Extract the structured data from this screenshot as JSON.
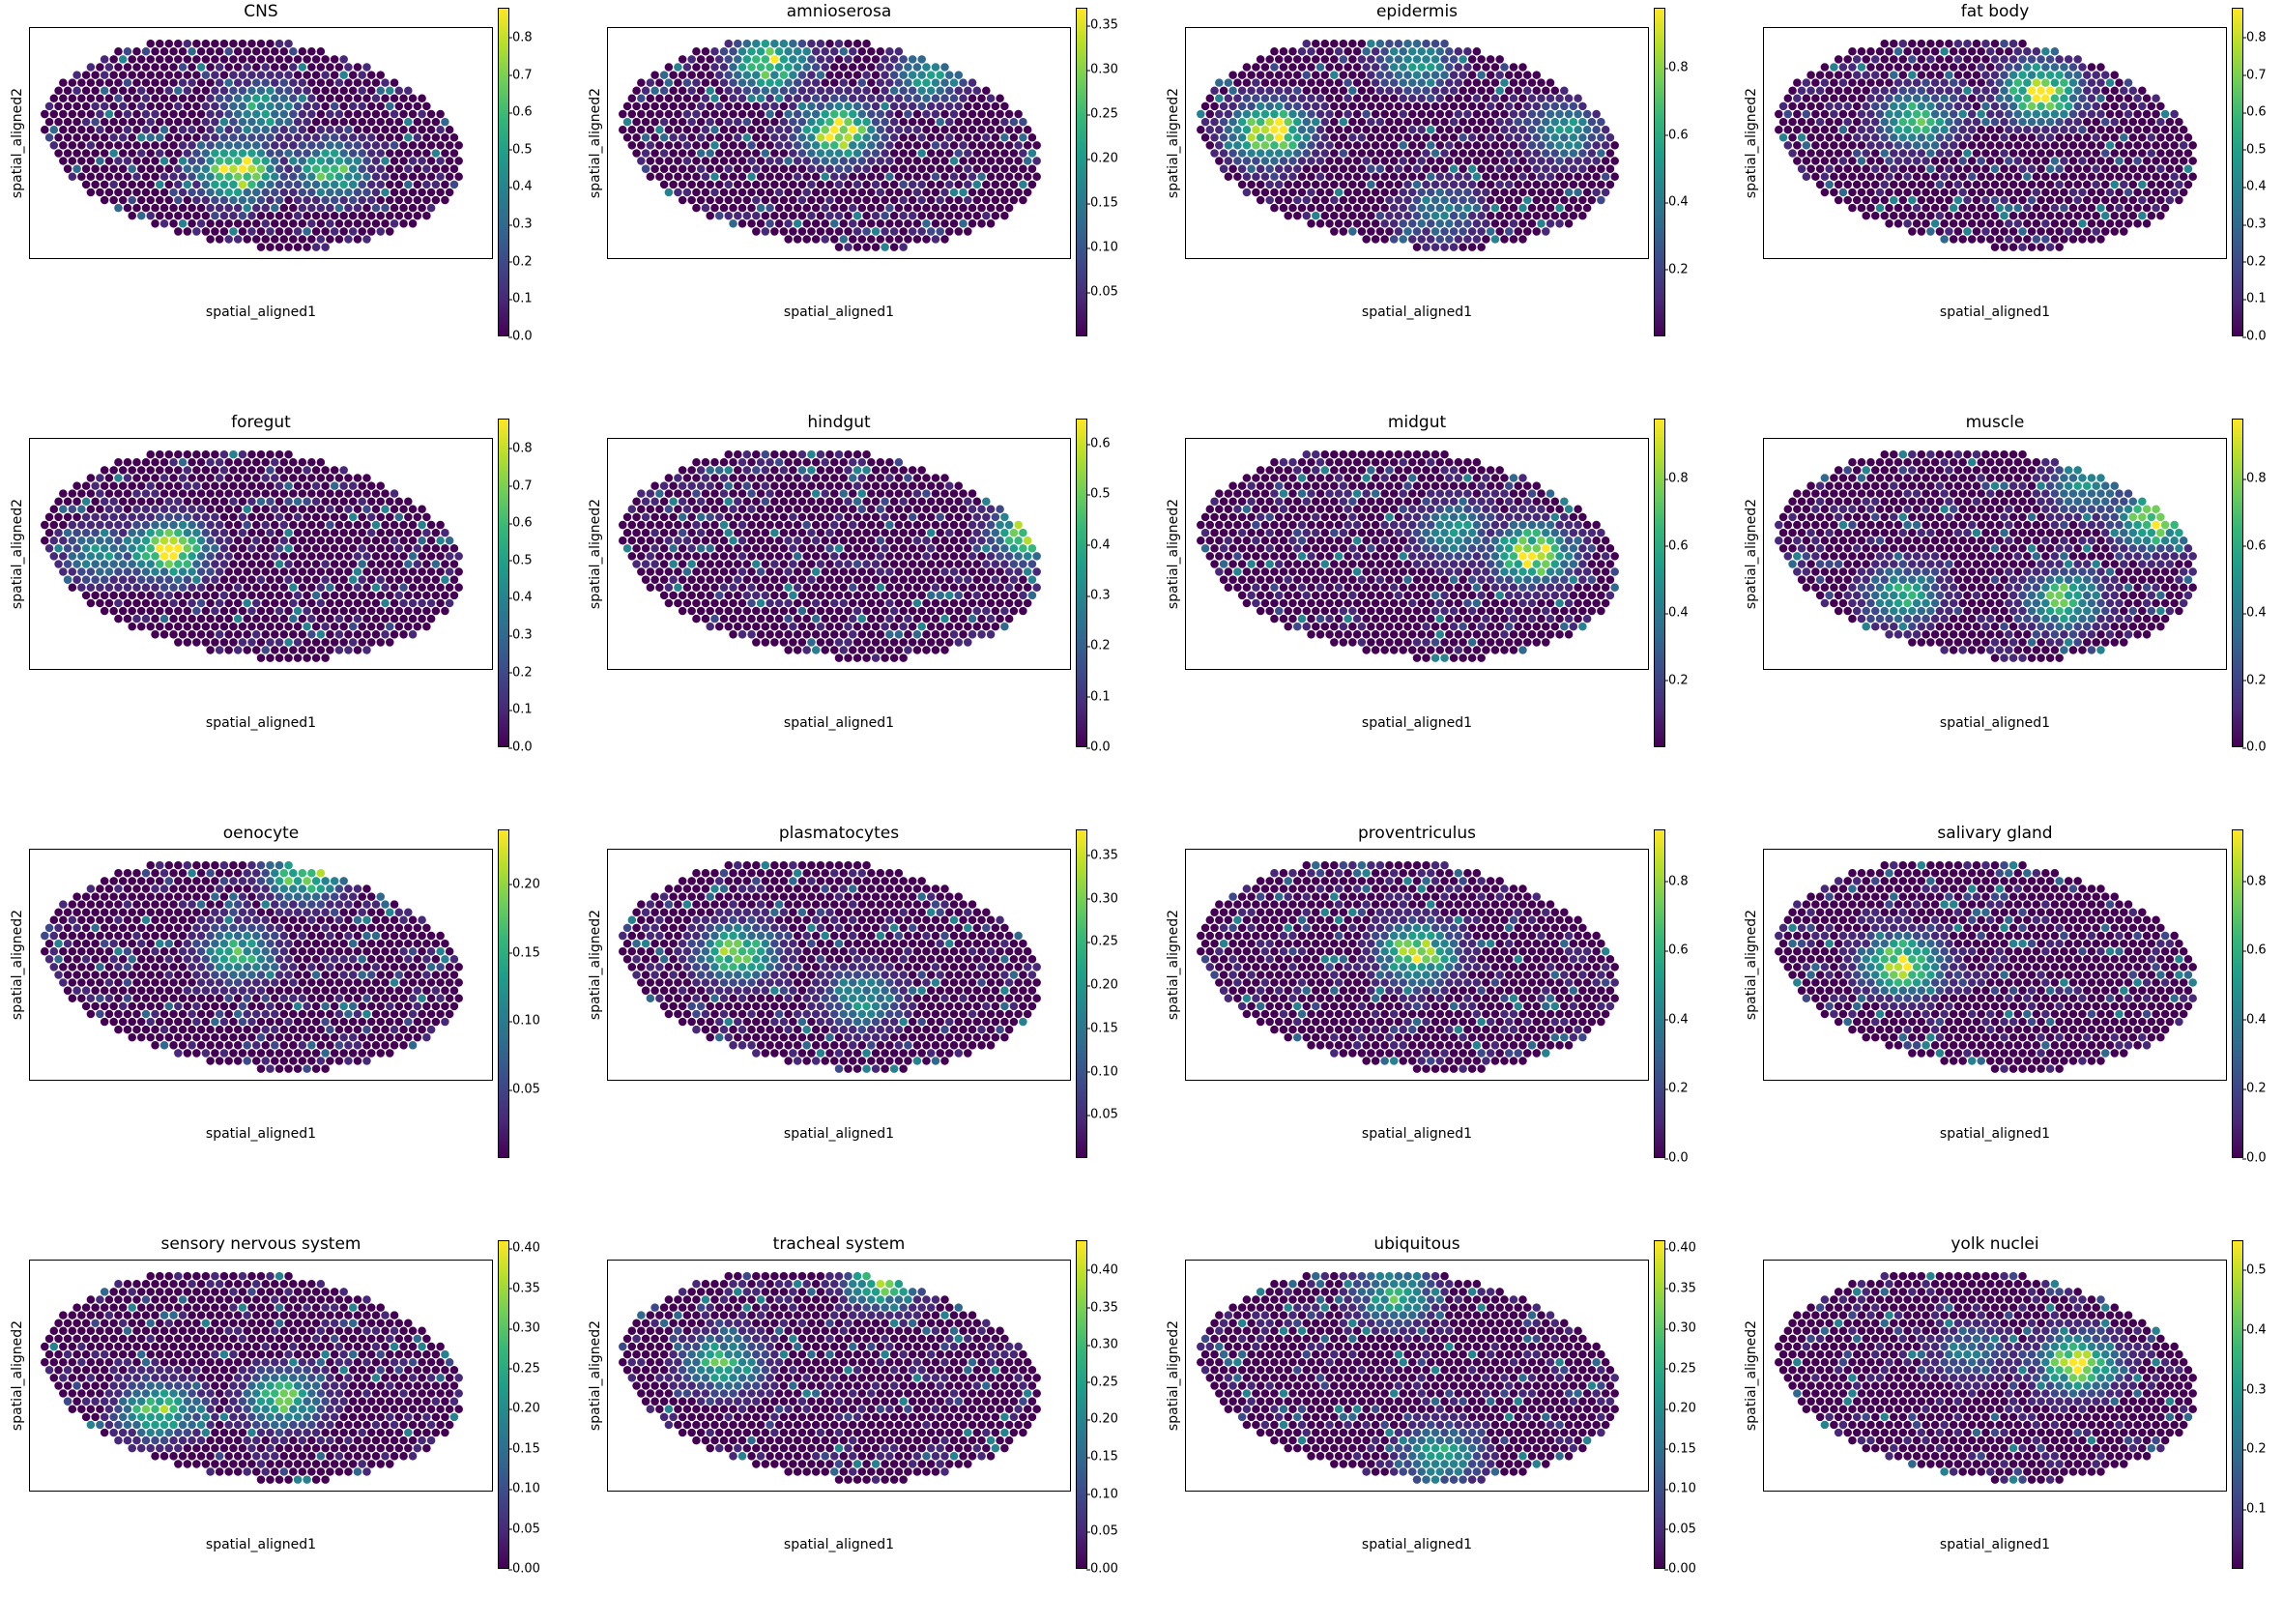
{
  "colormap": "viridis",
  "colors": [
    "#440154",
    "#482878",
    "#3e4989",
    "#31688e",
    "#26828e",
    "#1f9e89",
    "#35b779",
    "#6ece58",
    "#b5de2b",
    "#fde725"
  ],
  "chart_data": [
    {
      "type": "scatter",
      "title": "CNS",
      "xlabel": "spatial_aligned1",
      "ylabel": "spatial_aligned2",
      "colorbar": {
        "ticks": [
          "0.0",
          "0.1",
          "0.2",
          "0.3",
          "0.4",
          "0.5",
          "0.6",
          "0.7",
          "0.8"
        ],
        "min": 0,
        "max": 0.88
      },
      "hotspots": [
        {
          "x": 0.45,
          "y": 0.62,
          "v": 0.85
        },
        {
          "x": 0.65,
          "y": 0.62,
          "v": 0.6
        },
        {
          "x": 0.5,
          "y": 0.35,
          "v": 0.5
        }
      ]
    },
    {
      "type": "scatter",
      "title": "amnioserosa",
      "xlabel": "spatial_aligned1",
      "ylabel": "spatial_aligned2",
      "colorbar": {
        "ticks": [
          "0.05",
          "0.10",
          "0.15",
          "0.20",
          "0.25",
          "0.30",
          "0.35"
        ],
        "min": 0,
        "max": 0.37
      },
      "hotspots": [
        {
          "x": 0.5,
          "y": 0.45,
          "v": 0.35
        },
        {
          "x": 0.35,
          "y": 0.15,
          "v": 0.3
        },
        {
          "x": 0.7,
          "y": 0.2,
          "v": 0.2
        }
      ]
    },
    {
      "type": "scatter",
      "title": "epidermis",
      "xlabel": "spatial_aligned1",
      "ylabel": "spatial_aligned2",
      "colorbar": {
        "ticks": [
          "0.2",
          "0.4",
          "0.6",
          "0.8"
        ],
        "min": 0,
        "max": 0.98
      },
      "hotspots": [
        {
          "x": 0.18,
          "y": 0.45,
          "v": 0.95
        },
        {
          "x": 0.5,
          "y": 0.15,
          "v": 0.5
        },
        {
          "x": 0.82,
          "y": 0.45,
          "v": 0.5
        },
        {
          "x": 0.55,
          "y": 0.8,
          "v": 0.4
        }
      ]
    },
    {
      "type": "scatter",
      "title": "fat body",
      "xlabel": "spatial_aligned1",
      "ylabel": "spatial_aligned2",
      "colorbar": {
        "ticks": [
          "0.0",
          "0.1",
          "0.2",
          "0.3",
          "0.4",
          "0.5",
          "0.6",
          "0.7",
          "0.8"
        ],
        "min": 0,
        "max": 0.88
      },
      "hotspots": [
        {
          "x": 0.6,
          "y": 0.28,
          "v": 0.85
        },
        {
          "x": 0.33,
          "y": 0.4,
          "v": 0.6
        }
      ]
    },
    {
      "type": "scatter",
      "title": "foregut",
      "xlabel": "spatial_aligned1",
      "ylabel": "spatial_aligned2",
      "colorbar": {
        "ticks": [
          "0.0",
          "0.1",
          "0.2",
          "0.3",
          "0.4",
          "0.5",
          "0.6",
          "0.7",
          "0.8"
        ],
        "min": 0,
        "max": 0.88
      },
      "hotspots": [
        {
          "x": 0.3,
          "y": 0.48,
          "v": 0.85
        },
        {
          "x": 0.15,
          "y": 0.5,
          "v": 0.4
        }
      ]
    },
    {
      "type": "scatter",
      "title": "hindgut",
      "xlabel": "spatial_aligned1",
      "ylabel": "spatial_aligned2",
      "colorbar": {
        "ticks": [
          "0.0",
          "0.1",
          "0.2",
          "0.3",
          "0.4",
          "0.5",
          "0.6"
        ],
        "min": 0,
        "max": 0.65
      },
      "hotspots": [
        {
          "x": 0.92,
          "y": 0.4,
          "v": 0.6
        }
      ]
    },
    {
      "type": "scatter",
      "title": "midgut",
      "xlabel": "spatial_aligned1",
      "ylabel": "spatial_aligned2",
      "colorbar": {
        "ticks": [
          "0.2",
          "0.4",
          "0.6",
          "0.8"
        ],
        "min": 0,
        "max": 0.98
      },
      "hotspots": [
        {
          "x": 0.75,
          "y": 0.5,
          "v": 0.95
        },
        {
          "x": 0.58,
          "y": 0.4,
          "v": 0.5
        }
      ]
    },
    {
      "type": "scatter",
      "title": "muscle",
      "xlabel": "spatial_aligned1",
      "ylabel": "spatial_aligned2",
      "colorbar": {
        "ticks": [
          "0.0",
          "0.2",
          "0.4",
          "0.6",
          "0.8"
        ],
        "min": 0,
        "max": 0.98
      },
      "hotspots": [
        {
          "x": 0.85,
          "y": 0.35,
          "v": 0.9
        },
        {
          "x": 0.3,
          "y": 0.68,
          "v": 0.6
        },
        {
          "x": 0.65,
          "y": 0.7,
          "v": 0.7
        },
        {
          "x": 0.7,
          "y": 0.2,
          "v": 0.5
        }
      ]
    },
    {
      "type": "scatter",
      "title": "oenocyte",
      "xlabel": "spatial_aligned1",
      "ylabel": "spatial_aligned2",
      "colorbar": {
        "ticks": [
          "0.05",
          "0.10",
          "0.15",
          "0.20"
        ],
        "min": 0,
        "max": 0.24
      },
      "hotspots": [
        {
          "x": 0.45,
          "y": 0.45,
          "v": 0.15
        },
        {
          "x": 0.6,
          "y": 0.1,
          "v": 0.2
        }
      ]
    },
    {
      "type": "scatter",
      "title": "plasmatocytes",
      "xlabel": "spatial_aligned1",
      "ylabel": "spatial_aligned2",
      "colorbar": {
        "ticks": [
          "0.05",
          "0.10",
          "0.15",
          "0.20",
          "0.25",
          "0.30",
          "0.35"
        ],
        "min": 0,
        "max": 0.38
      },
      "hotspots": [
        {
          "x": 0.28,
          "y": 0.45,
          "v": 0.3
        },
        {
          "x": 0.55,
          "y": 0.65,
          "v": 0.2
        }
      ]
    },
    {
      "type": "scatter",
      "title": "proventriculus",
      "xlabel": "spatial_aligned1",
      "ylabel": "spatial_aligned2",
      "colorbar": {
        "ticks": [
          "0.0",
          "0.2",
          "0.4",
          "0.6",
          "0.8"
        ],
        "min": 0,
        "max": 0.95
      },
      "hotspots": [
        {
          "x": 0.5,
          "y": 0.45,
          "v": 0.85
        }
      ]
    },
    {
      "type": "scatter",
      "title": "salivary gland",
      "xlabel": "spatial_aligned1",
      "ylabel": "spatial_aligned2",
      "colorbar": {
        "ticks": [
          "0.0",
          "0.2",
          "0.4",
          "0.6",
          "0.8"
        ],
        "min": 0,
        "max": 0.95
      },
      "hotspots": [
        {
          "x": 0.3,
          "y": 0.5,
          "v": 0.9
        }
      ]
    },
    {
      "type": "scatter",
      "title": "sensory nervous system",
      "xlabel": "spatial_aligned1",
      "ylabel": "spatial_aligned2",
      "colorbar": {
        "ticks": [
          "0.00",
          "0.05",
          "0.10",
          "0.15",
          "0.20",
          "0.25",
          "0.30",
          "0.35",
          "0.40"
        ],
        "min": 0,
        "max": 0.41
      },
      "hotspots": [
        {
          "x": 0.55,
          "y": 0.6,
          "v": 0.3
        },
        {
          "x": 0.28,
          "y": 0.65,
          "v": 0.3
        }
      ]
    },
    {
      "type": "scatter",
      "title": "tracheal system",
      "xlabel": "spatial_aligned1",
      "ylabel": "spatial_aligned2",
      "colorbar": {
        "ticks": [
          "0.00",
          "0.05",
          "0.10",
          "0.15",
          "0.20",
          "0.25",
          "0.30",
          "0.35",
          "0.40"
        ],
        "min": 0,
        "max": 0.44
      },
      "hotspots": [
        {
          "x": 0.6,
          "y": 0.08,
          "v": 0.35
        },
        {
          "x": 0.25,
          "y": 0.45,
          "v": 0.3
        }
      ]
    },
    {
      "type": "scatter",
      "title": "ubiquitous",
      "xlabel": "spatial_aligned1",
      "ylabel": "spatial_aligned2",
      "colorbar": {
        "ticks": [
          "0.00",
          "0.05",
          "0.10",
          "0.15",
          "0.20",
          "0.25",
          "0.30",
          "0.35",
          "0.40"
        ],
        "min": 0,
        "max": 0.41
      },
      "hotspots": [
        {
          "x": 0.45,
          "y": 0.15,
          "v": 0.25
        },
        {
          "x": 0.55,
          "y": 0.85,
          "v": 0.25
        }
      ]
    },
    {
      "type": "scatter",
      "title": "yolk nuclei",
      "xlabel": "spatial_aligned1",
      "ylabel": "spatial_aligned2",
      "colorbar": {
        "ticks": [
          "0.1",
          "0.2",
          "0.3",
          "0.4",
          "0.5"
        ],
        "min": 0,
        "max": 0.55
      },
      "hotspots": [
        {
          "x": 0.68,
          "y": 0.45,
          "v": 0.5
        },
        {
          "x": 0.45,
          "y": 0.4,
          "v": 0.2
        }
      ]
    }
  ]
}
